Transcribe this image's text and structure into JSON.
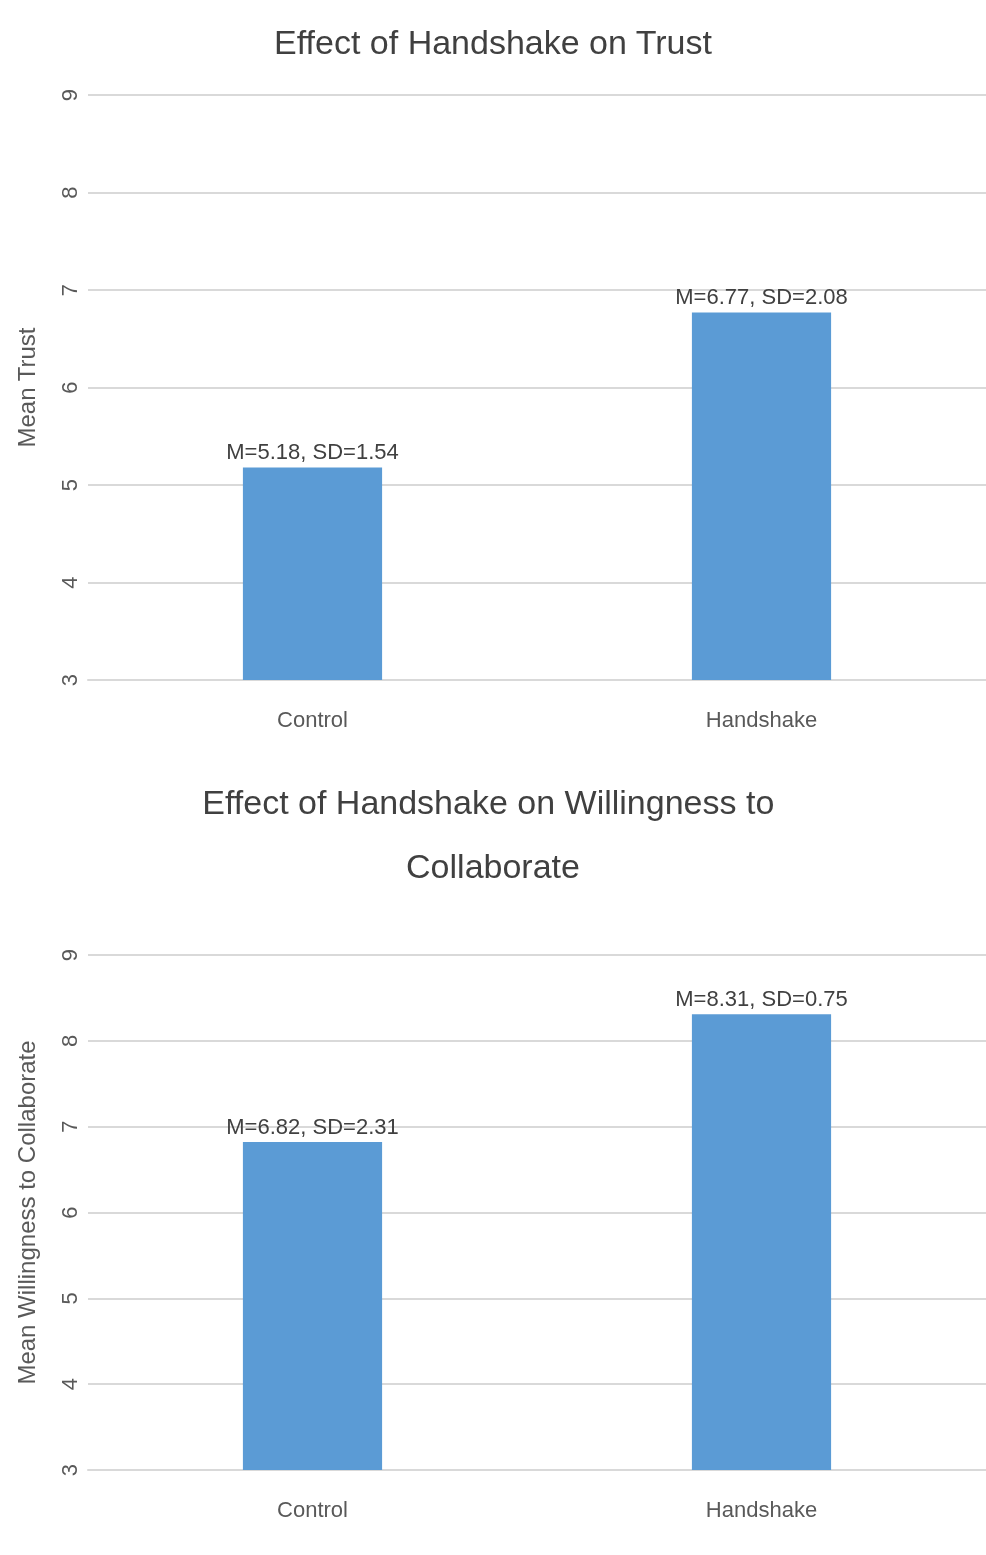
{
  "chart_data": [
    {
      "type": "bar",
      "title": "Effect of Handshake on Trust",
      "ylabel": "Mean Trust",
      "categories": [
        "Control",
        "Handshake"
      ],
      "values": [
        5.18,
        6.77
      ],
      "color": "#5b9bd5",
      "value_labels": [
        "M=5.18, SD=1.54",
        "M=6.77, SD=2.08"
      ],
      "ylim": [
        3,
        9
      ],
      "yticks": [
        3,
        4,
        5,
        6,
        7,
        8,
        9
      ],
      "grid": "y"
    },
    {
      "type": "bar",
      "title": "Effect of Handshake on Willingness to Collaborate",
      "ylabel": "Mean Willingness to Collaborate",
      "categories": [
        "Control",
        "Handshake"
      ],
      "values": [
        6.82,
        8.31
      ],
      "color": "#5b9bd5",
      "value_labels": [
        "M=6.82, SD=2.31",
        "M=8.31, SD=0.75"
      ],
      "ylim": [
        3,
        9
      ],
      "yticks": [
        3,
        4,
        5,
        6,
        7,
        8,
        9
      ],
      "grid": "y"
    }
  ]
}
